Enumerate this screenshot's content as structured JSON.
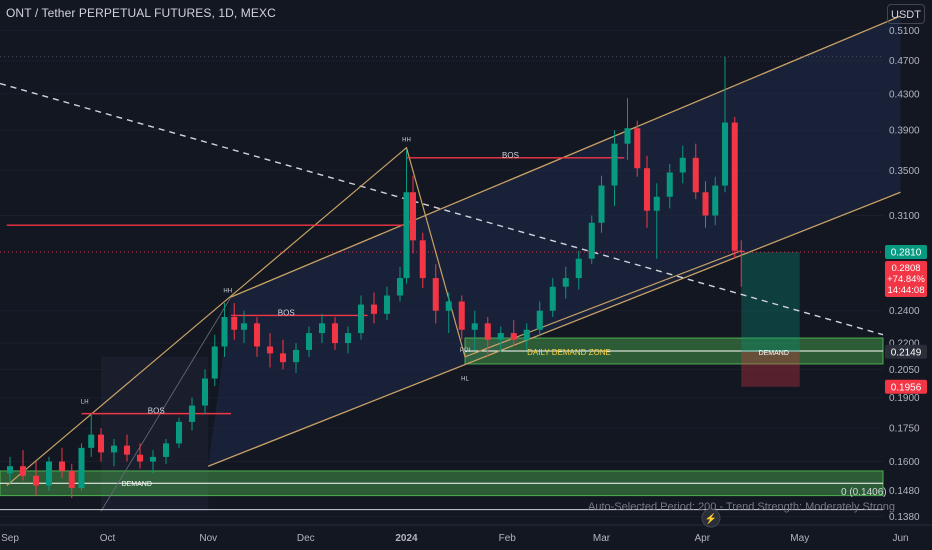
{
  "header": {
    "title": "ONT / Tether PERPETUAL FUTURES, 1D, MEXC",
    "currency": "USDT"
  },
  "chart_data": {
    "type": "candlestick",
    "title": "ONT / Tether PERPETUAL FUTURES, 1D, MEXC",
    "y_scale": "log",
    "ylim": [
      0.136,
      0.53
    ],
    "y_ticks": [
      "0.5100",
      "0.4700",
      "0.4300",
      "0.3900",
      "0.3500",
      "0.3100",
      "0.2400",
      "0.2200",
      "0.2050",
      "0.1900",
      "0.1750",
      "0.1600",
      "0.1480",
      "0.1380"
    ],
    "x_ticks": [
      "Sep",
      "Oct",
      "Nov",
      "Dec",
      "2024",
      "Feb",
      "Mar",
      "Apr",
      "May",
      "Jun"
    ],
    "x_range": [
      "2023-09-01",
      "2024-06-03"
    ],
    "series": [
      {
        "type": "candlestick",
        "candles": [
          [
            "2023-09-01",
            0.155,
            0.162,
            0.151,
            0.158
          ],
          [
            "2023-09-05",
            0.158,
            0.165,
            0.152,
            0.154
          ],
          [
            "2023-09-09",
            0.154,
            0.16,
            0.146,
            0.15
          ],
          [
            "2023-09-13",
            0.15,
            0.162,
            0.148,
            0.16
          ],
          [
            "2023-09-17",
            0.16,
            0.166,
            0.153,
            0.156
          ],
          [
            "2023-09-20",
            0.156,
            0.159,
            0.145,
            0.149
          ],
          [
            "2023-09-23",
            0.149,
            0.168,
            0.148,
            0.166
          ],
          [
            "2023-09-26",
            0.166,
            0.182,
            0.162,
            0.172
          ],
          [
            "2023-09-29",
            0.172,
            0.175,
            0.16,
            0.164
          ],
          [
            "2023-10-03",
            0.164,
            0.17,
            0.158,
            0.167
          ],
          [
            "2023-10-07",
            0.167,
            0.172,
            0.16,
            0.163
          ],
          [
            "2023-10-11",
            0.163,
            0.168,
            0.157,
            0.16
          ],
          [
            "2023-10-15",
            0.16,
            0.165,
            0.155,
            0.162
          ],
          [
            "2023-10-19",
            0.162,
            0.17,
            0.159,
            0.168
          ],
          [
            "2023-10-23",
            0.168,
            0.18,
            0.166,
            0.178
          ],
          [
            "2023-10-27",
            0.178,
            0.19,
            0.174,
            0.186
          ],
          [
            "2023-10-31",
            0.186,
            0.205,
            0.182,
            0.2
          ],
          [
            "2023-11-03",
            0.2,
            0.225,
            0.196,
            0.218
          ],
          [
            "2023-11-06",
            0.218,
            0.245,
            0.212,
            0.236
          ],
          [
            "2023-11-09",
            0.236,
            0.245,
            0.222,
            0.228
          ],
          [
            "2023-11-12",
            0.228,
            0.24,
            0.22,
            0.232
          ],
          [
            "2023-11-16",
            0.232,
            0.236,
            0.212,
            0.218
          ],
          [
            "2023-11-20",
            0.218,
            0.226,
            0.206,
            0.214
          ],
          [
            "2023-11-24",
            0.214,
            0.222,
            0.205,
            0.209
          ],
          [
            "2023-11-28",
            0.209,
            0.22,
            0.203,
            0.216
          ],
          [
            "2023-12-02",
            0.216,
            0.23,
            0.212,
            0.226
          ],
          [
            "2023-12-06",
            0.226,
            0.238,
            0.22,
            0.232
          ],
          [
            "2023-12-10",
            0.232,
            0.236,
            0.216,
            0.22
          ],
          [
            "2023-12-14",
            0.22,
            0.23,
            0.214,
            0.226
          ],
          [
            "2023-12-18",
            0.226,
            0.25,
            0.222,
            0.244
          ],
          [
            "2023-12-22",
            0.244,
            0.252,
            0.232,
            0.238
          ],
          [
            "2023-12-26",
            0.238,
            0.256,
            0.234,
            0.25
          ],
          [
            "2023-12-30",
            0.25,
            0.27,
            0.246,
            0.262
          ],
          [
            "2024-01-01",
            0.262,
            0.37,
            0.258,
            0.33
          ],
          [
            "2024-01-03",
            0.33,
            0.345,
            0.28,
            0.29
          ],
          [
            "2024-01-06",
            0.29,
            0.296,
            0.255,
            0.262
          ],
          [
            "2024-01-10",
            0.262,
            0.272,
            0.232,
            0.24
          ],
          [
            "2024-01-14",
            0.24,
            0.252,
            0.226,
            0.246
          ],
          [
            "2024-01-18",
            0.246,
            0.25,
            0.222,
            0.228
          ],
          [
            "2024-01-22",
            0.228,
            0.24,
            0.216,
            0.232
          ],
          [
            "2024-01-26",
            0.232,
            0.236,
            0.212,
            0.222
          ],
          [
            "2024-01-30",
            0.222,
            0.23,
            0.215,
            0.226
          ],
          [
            "2024-02-03",
            0.226,
            0.234,
            0.218,
            0.222
          ],
          [
            "2024-02-07",
            0.222,
            0.232,
            0.216,
            0.228
          ],
          [
            "2024-02-11",
            0.228,
            0.246,
            0.224,
            0.24
          ],
          [
            "2024-02-15",
            0.24,
            0.262,
            0.236,
            0.256
          ],
          [
            "2024-02-19",
            0.256,
            0.27,
            0.248,
            0.262
          ],
          [
            "2024-02-23",
            0.262,
            0.282,
            0.254,
            0.276
          ],
          [
            "2024-02-27",
            0.276,
            0.31,
            0.272,
            0.304
          ],
          [
            "2024-03-01",
            0.304,
            0.345,
            0.296,
            0.336
          ],
          [
            "2024-03-05",
            0.336,
            0.39,
            0.318,
            0.376
          ],
          [
            "2024-03-09",
            0.376,
            0.425,
            0.36,
            0.392
          ],
          [
            "2024-03-12",
            0.392,
            0.4,
            0.344,
            0.352
          ],
          [
            "2024-03-15",
            0.352,
            0.364,
            0.3,
            0.314
          ],
          [
            "2024-03-18",
            0.314,
            0.338,
            0.276,
            0.326
          ],
          [
            "2024-03-22",
            0.326,
            0.356,
            0.316,
            0.348
          ],
          [
            "2024-03-26",
            0.348,
            0.374,
            0.338,
            0.362
          ],
          [
            "2024-03-30",
            0.362,
            0.376,
            0.324,
            0.33
          ],
          [
            "2024-04-02",
            0.33,
            0.34,
            0.3,
            0.31
          ],
          [
            "2024-04-05",
            0.31,
            0.344,
            0.302,
            0.336
          ],
          [
            "2024-04-08",
            0.336,
            0.475,
            0.33,
            0.398
          ],
          [
            "2024-04-11",
            0.398,
            0.404,
            0.276,
            0.282
          ],
          [
            "2024-04-13",
            0.282,
            0.29,
            0.256,
            0.281
          ]
        ]
      }
    ],
    "current_price": {
      "price": "0.2810",
      "label": "0.2808",
      "change": "+74.84%",
      "countdown": "14:44:08"
    },
    "zones": [
      {
        "label": "DEMAND",
        "low": 0.146,
        "high": 0.156,
        "color": "#4caf50"
      },
      {
        "label": "DAILY DEMAND ZONE",
        "low": 0.208,
        "high": 0.223,
        "color": "#4caf50"
      },
      {
        "label": "DEMAND",
        "low": 0.2149,
        "high": 0.2149,
        "color": "#ffffff"
      }
    ],
    "structure_labels": [
      {
        "text": "LH",
        "date": "2023-09-24",
        "price": 0.187
      },
      {
        "text": "BOS",
        "date": "2023-10-16",
        "price": 0.182
      },
      {
        "text": "HH",
        "date": "2023-11-07",
        "price": 0.252
      },
      {
        "text": "BOS",
        "date": "2023-11-25",
        "price": 0.237
      },
      {
        "text": "HH",
        "date": "2024-01-01",
        "price": 0.378
      },
      {
        "text": "BOS",
        "date": "2024-02-02",
        "price": 0.362
      },
      {
        "text": "POI",
        "date": "2024-01-19",
        "price": 0.2149
      },
      {
        "text": "HL",
        "date": "2024-01-19",
        "price": 0.199
      }
    ],
    "axis_price_labels": [
      {
        "text": "0.2810",
        "price": 0.281,
        "color": "#089981"
      },
      {
        "text": "0.2149",
        "price": 0.2149,
        "color": "#2a2e39"
      },
      {
        "text": "0.1956",
        "price": 0.1956,
        "color": "#f23645"
      }
    ],
    "annotations": {
      "fib_label": "0 (0.1406)",
      "footer": "Auto-Selected Period: 200 - Trend Strength: Moderately Strong"
    },
    "colors": {
      "up": "#089981",
      "down": "#f23645",
      "background": "#131722",
      "channel": "#c8a165",
      "bos": "#f23645",
      "zone": "#4caf50"
    }
  }
}
